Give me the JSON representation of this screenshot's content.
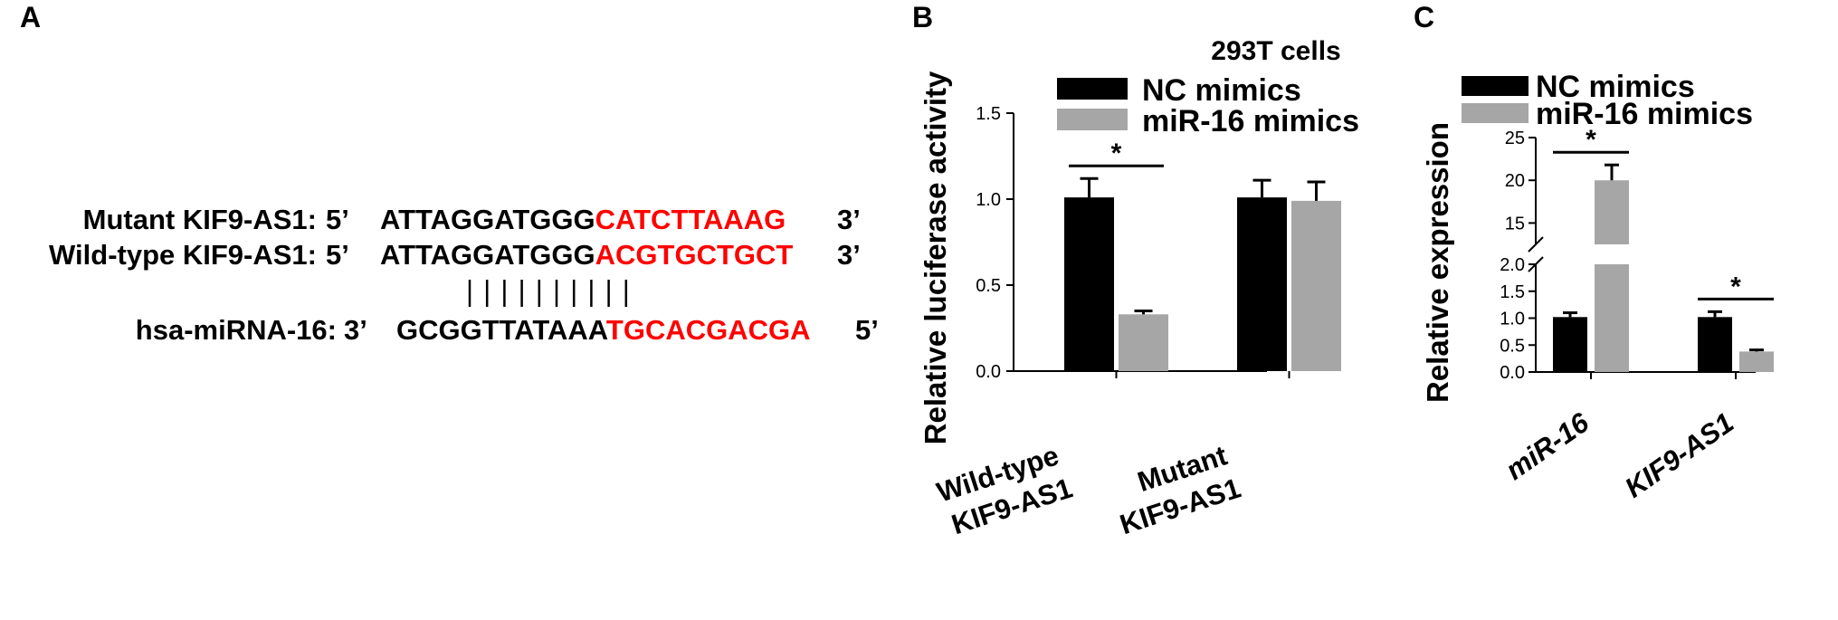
{
  "panels": {
    "A": "A",
    "B": "B",
    "C": "C"
  },
  "sequence_panel": {
    "rows": [
      {
        "label": "Mutant KIF9-AS1:",
        "end5": "5’",
        "black": "ATTAGGATGGG",
        "red": "CATCTTAAAG",
        "end3": "3’"
      },
      {
        "label": "Wild-type KIF9-AS1:",
        "end5": "5’",
        "black": "ATTAGGATGGG",
        "red": "ACGTGCTGCT",
        "end3": "3’"
      },
      {
        "label": "hsa-miRNA-16:",
        "end5": "3’",
        "black": "GCGGTTATAAA",
        "red": "TGCACGACGA",
        "end3": "5’"
      }
    ],
    "pairing_marks": 10,
    "colors": {
      "highlight": "#ff0000",
      "text": "#000000"
    }
  },
  "colors": {
    "nc": "#000000",
    "mir16": "#a6a6a6",
    "highlight": "#ff0000"
  },
  "chart_data": [
    {
      "type": "bar",
      "title": "293T cells",
      "ylabel": "Relative luciferase activity",
      "xlabel": "",
      "ylim": [
        0,
        1.5
      ],
      "yticks": [
        "0.0",
        "0.5",
        "1.0",
        "1.5"
      ],
      "categories": [
        {
          "line1": "Wild-type",
          "line2": "KIF9-AS1"
        },
        {
          "line1": "Mutant",
          "line2": "KIF9-AS1"
        }
      ],
      "series": [
        {
          "name": "NC mimics",
          "values": [
            1.01,
            1.01
          ],
          "errors": [
            0.11,
            0.1
          ]
        },
        {
          "name": "miR-16 mimics",
          "values": [
            0.33,
            0.99
          ],
          "errors": [
            0.02,
            0.11
          ]
        }
      ],
      "significance": [
        {
          "category": 0,
          "label": "*"
        }
      ],
      "legend": "top",
      "grid": false
    },
    {
      "type": "bar",
      "title": "",
      "ylabel": "Relative expression",
      "xlabel": "",
      "y_axis_break": {
        "lower": [
          0,
          2.0
        ],
        "upper": [
          12.5,
          25
        ]
      },
      "yticks_lower": [
        "0.0",
        "0.5",
        "1.0",
        "1.5",
        "2.0"
      ],
      "yticks_upper": [
        "15",
        "20",
        "25"
      ],
      "categories": [
        "miR-16",
        "KIF9-AS1"
      ],
      "series": [
        {
          "name": "NC mimics",
          "values": [
            1.02,
            1.02
          ],
          "errors": [
            0.08,
            0.1
          ]
        },
        {
          "name": "miR-16 mimics",
          "values": [
            20.0,
            0.38
          ],
          "errors": [
            1.8,
            0.03
          ]
        }
      ],
      "significance": [
        {
          "category": 0,
          "label": "*"
        },
        {
          "category": 1,
          "label": "*"
        }
      ],
      "legend": "top-left",
      "grid": false
    }
  ]
}
